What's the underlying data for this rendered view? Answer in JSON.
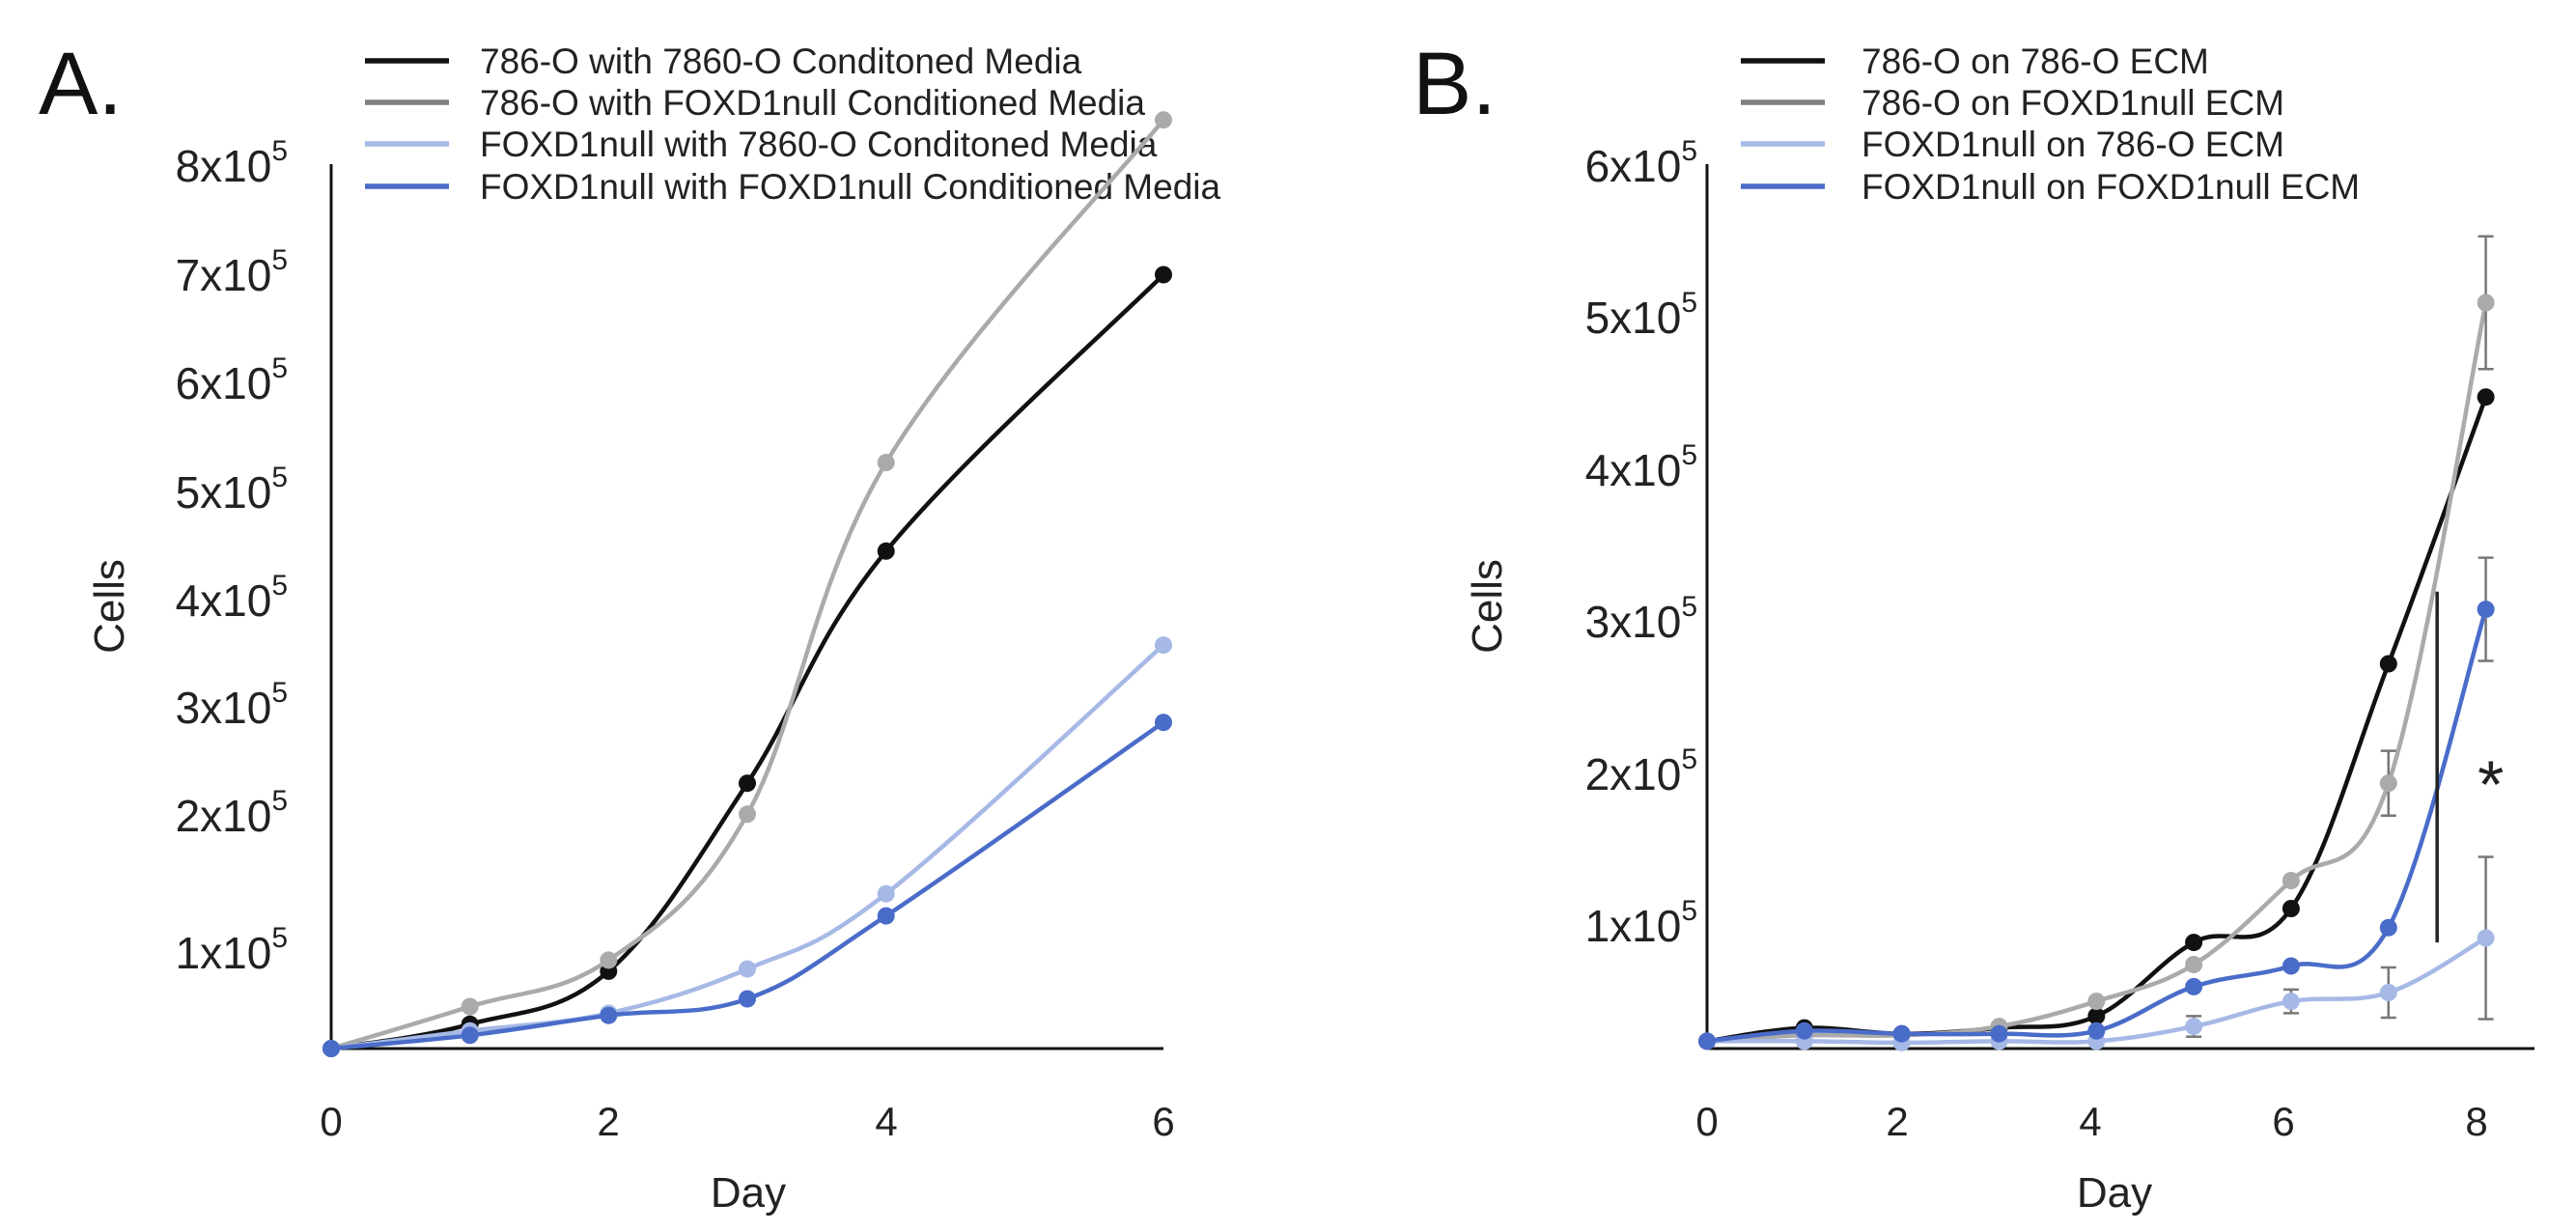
{
  "chart_data": [
    {
      "type": "line",
      "panel_label": "A.",
      "xlabel": "Day",
      "ylabel": "Cells",
      "xlim": [
        0,
        6
      ],
      "ylim": [
        0,
        800000
      ],
      "xticks": [
        0,
        2,
        4,
        6
      ],
      "yticks": [
        {
          "value": 100000,
          "mantissa": "1x10",
          "exp": "5"
        },
        {
          "value": 200000,
          "mantissa": "2x10",
          "exp": "5"
        },
        {
          "value": 300000,
          "mantissa": "3x10",
          "exp": "5"
        },
        {
          "value": 400000,
          "mantissa": "4x10",
          "exp": "5"
        },
        {
          "value": 500000,
          "mantissa": "5x10",
          "exp": "5"
        },
        {
          "value": 600000,
          "mantissa": "6x10",
          "exp": "5"
        },
        {
          "value": 700000,
          "mantissa": "7x10",
          "exp": "5"
        },
        {
          "value": 800000,
          "mantissa": "8x10",
          "exp": "5"
        }
      ],
      "legend_position": "top",
      "series": [
        {
          "name": "786-O with 7860-O Conditoned Media",
          "color": "#111111",
          "x": [
            0,
            1,
            2,
            3,
            4,
            6
          ],
          "values": [
            0,
            22000,
            70000,
            240000,
            450000,
            700000
          ]
        },
        {
          "name": "786-O with FOXD1null Conditioned Media",
          "color": "#aaaaaa",
          "legend_color": "#808080",
          "x": [
            0,
            1,
            2,
            3,
            4,
            6
          ],
          "values": [
            0,
            38000,
            80000,
            212000,
            530000,
            840000
          ]
        },
        {
          "name": "FOXD1null with 7860-O Conditoned Media",
          "color": "#a6b9e6",
          "x": [
            0,
            1,
            2,
            3,
            4,
            6
          ],
          "values": [
            0,
            16000,
            32000,
            72000,
            140000,
            365000
          ]
        },
        {
          "name": "FOXD1null with FOXD1null Conditioned Media",
          "color": "#4a6cc9",
          "x": [
            0,
            1,
            2,
            3,
            4,
            6
          ],
          "values": [
            0,
            12000,
            30000,
            45000,
            120000,
            295000
          ]
        }
      ]
    },
    {
      "type": "line",
      "panel_label": "B.",
      "xlabel": "Day",
      "ylabel": "Cells",
      "xlim": [
        0,
        8.5
      ],
      "ylim": [
        0,
        600000
      ],
      "xticks": [
        0,
        2,
        4,
        6,
        8
      ],
      "yticks": [
        {
          "value": 100000,
          "mantissa": "1x10",
          "exp": "5"
        },
        {
          "value": 200000,
          "mantissa": "2x10",
          "exp": "5"
        },
        {
          "value": 300000,
          "mantissa": "3x10",
          "exp": "5"
        },
        {
          "value": 400000,
          "mantissa": "4x10",
          "exp": "5"
        },
        {
          "value": 500000,
          "mantissa": "5x10",
          "exp": "5"
        },
        {
          "value": 600000,
          "mantissa": "6x10",
          "exp": "5"
        }
      ],
      "legend_position": "top",
      "significance": {
        "label": "*",
        "x": 7.5,
        "from": 72000,
        "to": 310000
      },
      "series": [
        {
          "name": "786-O on 786-O ECM",
          "color": "#111111",
          "x": [
            0,
            1,
            2,
            3,
            4,
            5,
            6,
            7,
            8
          ],
          "values": [
            5000,
            14000,
            10000,
            14000,
            22000,
            72000,
            95000,
            261000,
            442000
          ],
          "err": []
        },
        {
          "name": "786-O on FOXD1null ECM",
          "color": "#aaaaaa",
          "legend_color": "#808080",
          "x": [
            0,
            1,
            2,
            3,
            4,
            5,
            6,
            7,
            8
          ],
          "values": [
            5000,
            9000,
            9000,
            15000,
            32000,
            57000,
            114000,
            180000,
            506000
          ],
          "err": [
            null,
            null,
            null,
            null,
            null,
            null,
            null,
            22000,
            45000
          ]
        },
        {
          "name": "FOXD1null on 786-O ECM",
          "color": "#a6b9e6",
          "x": [
            0,
            1,
            2,
            3,
            4,
            5,
            6,
            7,
            8
          ],
          "values": [
            5000,
            5000,
            4000,
            5000,
            5000,
            15000,
            32000,
            38000,
            75000
          ],
          "err": [
            null,
            null,
            null,
            null,
            null,
            7000,
            8000,
            17000,
            55000
          ]
        },
        {
          "name": "FOXD1null on FOXD1null ECM",
          "color": "#4a6cc9",
          "x": [
            0,
            1,
            2,
            3,
            4,
            5,
            6,
            7,
            8
          ],
          "values": [
            5000,
            12000,
            10000,
            10000,
            12000,
            42000,
            56000,
            82000,
            298000
          ],
          "err": [
            null,
            null,
            null,
            null,
            null,
            null,
            null,
            null,
            35000
          ]
        }
      ]
    }
  ]
}
